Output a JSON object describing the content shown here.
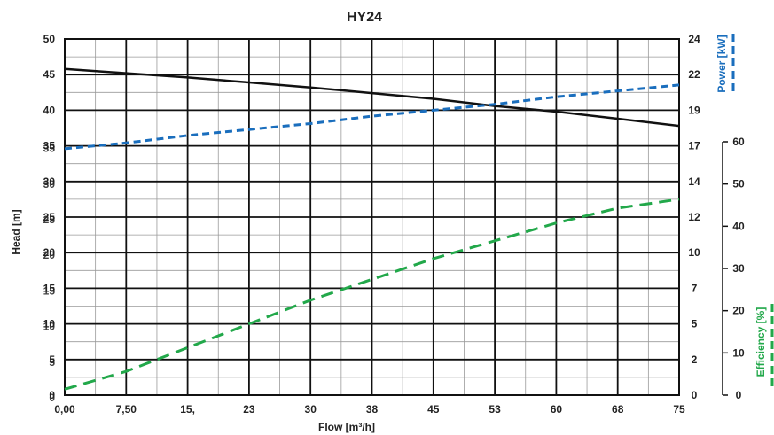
{
  "chart_data": {
    "type": "line",
    "title": "HY24",
    "xlabel": "Flow [m³/h]",
    "ylabel": "Head [m]",
    "x_ticks": [
      "0,00",
      "7,50",
      "15,",
      "23",
      "30",
      "38",
      "45",
      "53",
      "60",
      "68",
      "75"
    ],
    "x_range": [
      0,
      75
    ],
    "y_left_primary": {
      "label": "Head [m]",
      "range": [
        0,
        50
      ],
      "ticks": [
        "0",
        "5",
        "10",
        "15",
        "20",
        "25",
        "30",
        "35",
        "40",
        "45",
        "50"
      ]
    },
    "y_left_secondary": {
      "range": [
        0,
        50
      ],
      "ticks": [
        "0",
        "5",
        "10",
        "15",
        "20",
        "25",
        "30",
        "35"
      ]
    },
    "y_right_power": {
      "label": "Power [kW]",
      "range": [
        0,
        24
      ],
      "ticks": [
        "0",
        "2",
        "5",
        "7",
        "10",
        "12",
        "14",
        "17",
        "19",
        "22",
        "24"
      ]
    },
    "y_right_efficiency": {
      "label": "Efficiency [%]",
      "range": [
        0,
        60
      ],
      "ticks": [
        "0",
        "10",
        "20",
        "30",
        "40",
        "50",
        "60"
      ]
    },
    "grid": true,
    "series": [
      {
        "name": "Head [m]",
        "axis": "head",
        "color": "#111111",
        "dash": "solid",
        "x": [
          0,
          7.5,
          15,
          22.5,
          30,
          37.5,
          45,
          52.5,
          60,
          67.5,
          75
        ],
        "y": [
          45.8,
          45.2,
          44.6,
          43.9,
          43.2,
          42.4,
          41.6,
          40.6,
          39.8,
          38.8,
          37.8
        ]
      },
      {
        "name": "Power [kW]",
        "axis": "power",
        "color": "#1a6ebd",
        "dash": "dashed",
        "x": [
          0,
          7.5,
          15,
          22.5,
          30,
          37.5,
          45,
          52.5,
          60,
          67.5,
          75
        ],
        "y": [
          16.6,
          17.0,
          17.5,
          17.9,
          18.3,
          18.8,
          19.2,
          19.6,
          20.1,
          20.5,
          20.9
        ]
      },
      {
        "name": "Efficiency [%]",
        "axis": "efficiency",
        "color": "#22a84a",
        "dash": "dashed",
        "x": [
          0,
          7.5,
          15,
          22.5,
          30,
          37.5,
          45,
          52.5,
          60,
          67.5,
          75
        ],
        "y": [
          1,
          4,
          8,
          12,
          16,
          19.5,
          23,
          26,
          29,
          31.5,
          33
        ]
      }
    ]
  }
}
